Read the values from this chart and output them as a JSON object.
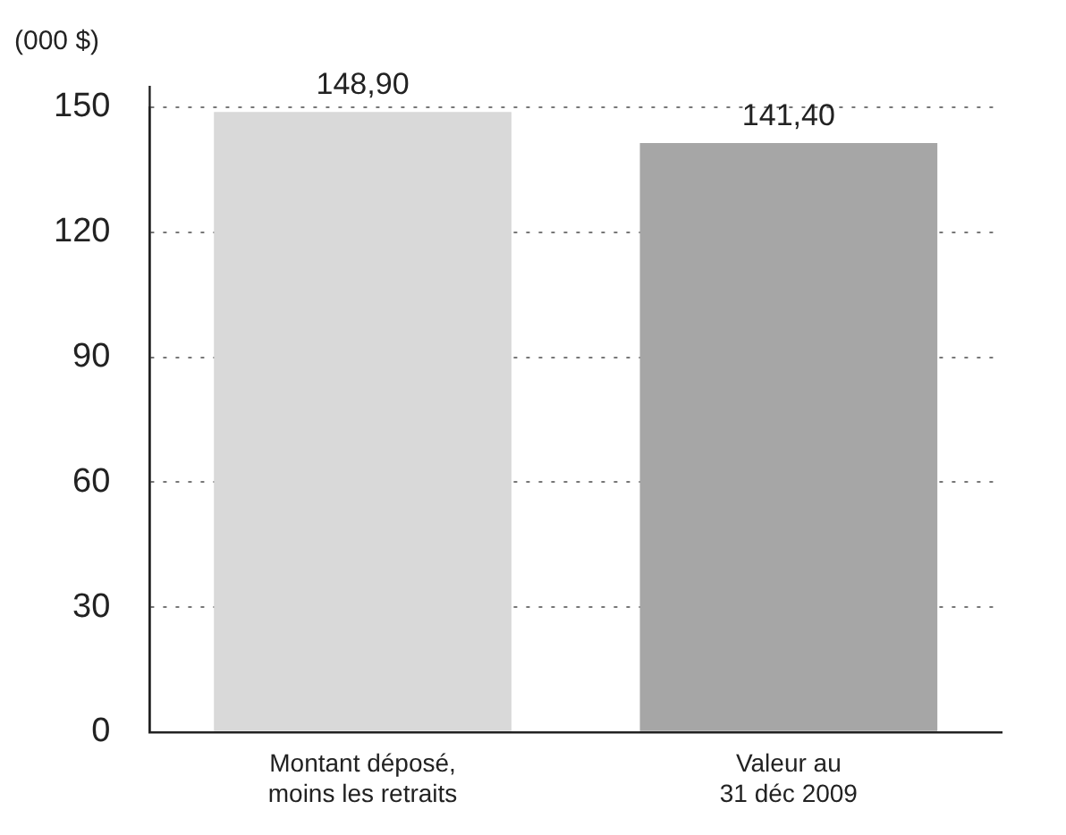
{
  "chart_data": {
    "type": "bar",
    "ylabel": "(000 $)",
    "categories": [
      "Montant déposé, moins les retraits",
      "Valeur au 31 déc 2009"
    ],
    "values": [
      148.9,
      141.4
    ],
    "colors": [
      "#d9d9d9",
      "#a6a6a6"
    ],
    "value_labels": [
      "148,90",
      "141,40"
    ],
    "ylim": [
      0,
      150
    ],
    "yticks": [
      0,
      30,
      60,
      90,
      120,
      150
    ],
    "grid": "y",
    "legend": false
  }
}
